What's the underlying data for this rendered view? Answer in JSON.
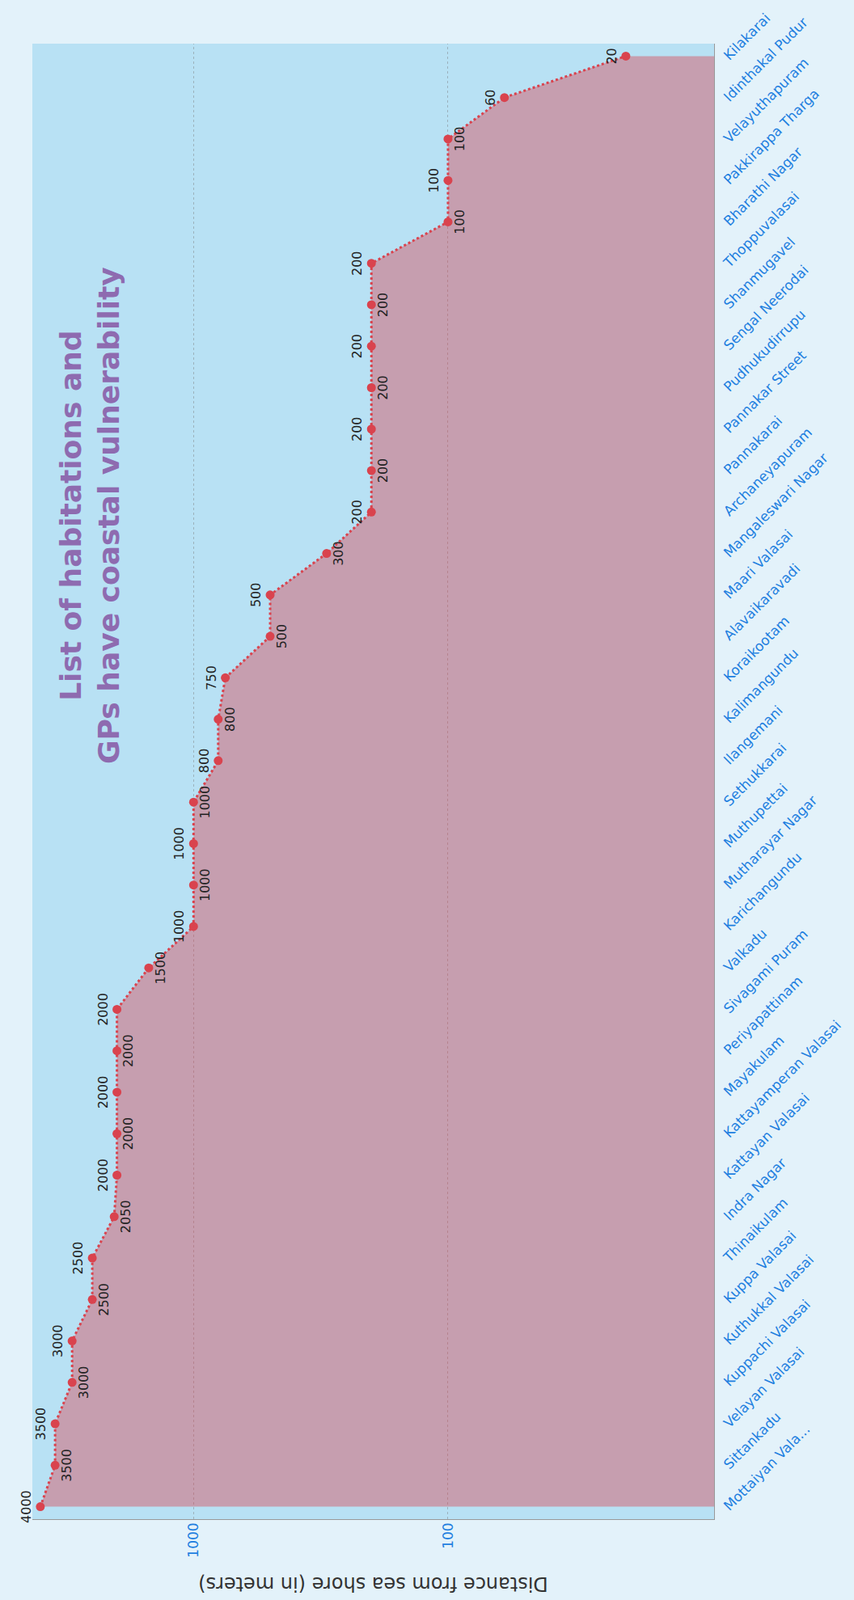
{
  "chart_data": {
    "type": "line",
    "title": "List of habitations and GPs have coastal vulnerability",
    "ylabel": "Distance from sea shore (in meters)",
    "categories": [
      "Mottaiyan Vala...",
      "Sittankadu",
      "Velayan Valasai",
      "Kuppachi Valasai",
      "Kuthukkal Valasai",
      "Kuppa Valasai",
      "Thinaikulam",
      "Indra Nagar",
      "Kattayan Valasai",
      "Kattayamperan Valasai",
      "Mayakulam",
      "Periyapattinam",
      "Sivagami Puram",
      "Valkadu",
      "Karichangundu",
      "Mutharayar Nagar",
      "Muthupettai",
      "Sethukkarai",
      "Ilangemani",
      "Kalimangundu",
      "Koraikootam",
      "Alavaikaravadi",
      "Maari Valasai",
      "Mangaleswari Nagar",
      "Archaneyapuram",
      "Pannakarai",
      "Pannakar Street",
      "Pudhukudirrupu",
      "Sengal Neerodai",
      "Shanmugavel",
      "Thoppuvalasai",
      "Bharathi Nagar",
      "Pakkirappa Tharga",
      "Velayuthapuram",
      "Idinthakal Pudur",
      "Kilakarai"
    ],
    "values": [
      4000,
      3500,
      3500,
      3000,
      3000,
      2500,
      2500,
      2050,
      2000,
      2000,
      2000,
      2000,
      2000,
      1500,
      1000,
      1000,
      1000,
      1000,
      800,
      800,
      750,
      500,
      500,
      300,
      200,
      200,
      200,
      200,
      200,
      200,
      200,
      100,
      100,
      100,
      60,
      20
    ],
    "color": "#d9434e",
    "log": "y",
    "ylim": [
      9,
      4300
    ],
    "yticks": [
      100,
      1000
    ],
    "grid": true,
    "data_labels": true,
    "marker": "circle",
    "line_style": "dotted"
  }
}
